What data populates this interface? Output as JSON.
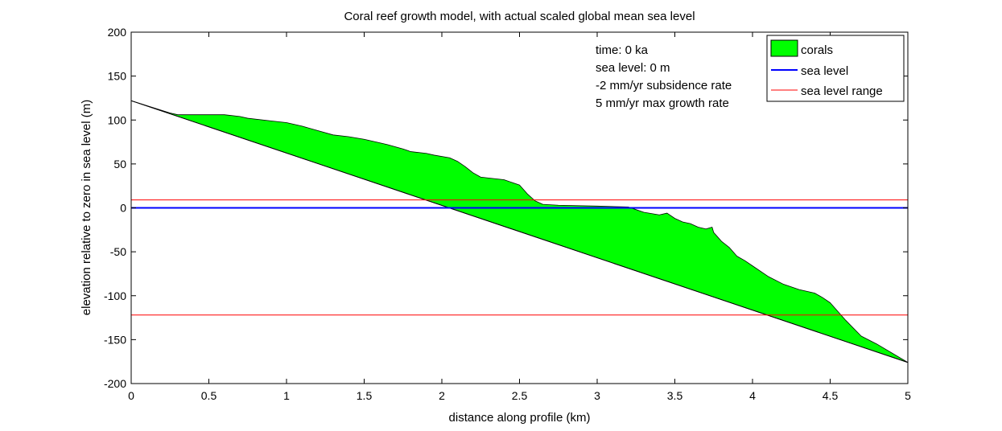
{
  "chart_data": {
    "type": "area",
    "title": "Coral reef growth model, with actual scaled global mean sea level",
    "xlabel": "distance along profile (km)",
    "ylabel": "elevation relative to zero in sea level (m)",
    "xlim": [
      0,
      5
    ],
    "ylim": [
      -200,
      200
    ],
    "xticks": [
      0,
      0.5,
      1,
      1.5,
      2,
      2.5,
      3,
      3.5,
      4,
      4.5,
      5
    ],
    "xtick_labels": [
      "0",
      "0.5",
      "1",
      "1.5",
      "2",
      "2.5",
      "3",
      "3.5",
      "4",
      "4.5",
      "5"
    ],
    "yticks": [
      200,
      150,
      100,
      50,
      0,
      -50,
      -100,
      -150,
      -200
    ],
    "ytick_labels": [
      "200",
      "150",
      "100",
      "50",
      "0",
      "-50",
      "-100",
      "-150",
      "-200"
    ],
    "grid": false,
    "legend_position": "top-right",
    "annotations": [
      "time: 0 ka",
      "sea level: 0 m",
      "-2 mm/yr subsidence rate",
      "5 mm/yr max growth rate"
    ],
    "series": [
      {
        "name": "corals",
        "kind": "filled-area",
        "color": "#00ff00",
        "bedrock": {
          "x": [
            0,
            5
          ],
          "y": [
            122,
            -176
          ]
        },
        "top": {
          "x": [
            0,
            0.25,
            0.3,
            0.6,
            0.7,
            0.75,
            0.9,
            1.0,
            1.1,
            1.2,
            1.3,
            1.4,
            1.5,
            1.6,
            1.65,
            1.75,
            1.8,
            1.9,
            1.95,
            2.05,
            2.1,
            2.15,
            2.2,
            2.25,
            2.3,
            2.4,
            2.5,
            2.55,
            2.6,
            2.65,
            2.75,
            3.0,
            3.2,
            3.25,
            3.3,
            3.4,
            3.45,
            3.5,
            3.55,
            3.6,
            3.65,
            3.7,
            3.72,
            3.74,
            3.75,
            3.8,
            3.85,
            3.9,
            3.95,
            4.0,
            4.1,
            4.2,
            4.3,
            4.4,
            4.45,
            4.5,
            4.6,
            4.65,
            4.7,
            4.8,
            5.0
          ],
          "y": [
            122,
            108,
            106,
            106,
            104,
            102,
            99,
            97,
            93,
            88,
            83,
            81,
            78,
            74,
            72,
            67,
            64,
            62,
            60,
            57,
            53,
            47,
            40,
            35,
            34,
            32,
            26,
            16,
            8,
            4,
            3,
            2,
            1,
            -2,
            -5,
            -8,
            -6,
            -12,
            -16,
            -18,
            -22,
            -24,
            -23,
            -22,
            -28,
            -38,
            -45,
            -55,
            -60,
            -66,
            -78,
            -87,
            -93,
            -97,
            -102,
            -108,
            -128,
            -137,
            -146,
            -155,
            -176
          ]
        }
      },
      {
        "name": "sea level",
        "kind": "hline",
        "color": "#0000ff",
        "y": 0
      },
      {
        "name": "sea level range",
        "kind": "hline-pair",
        "color": "#ff0000",
        "y": [
          9,
          -122
        ]
      }
    ]
  }
}
